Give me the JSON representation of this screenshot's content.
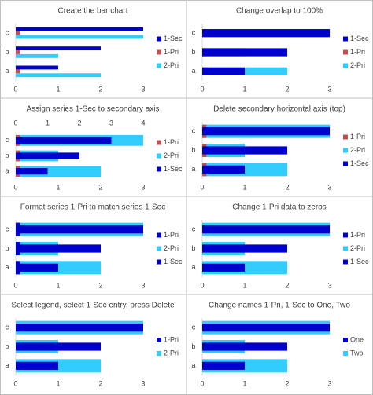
{
  "chart_data": [
    {
      "type": "bar",
      "title": "Create the bar chart",
      "overlap": 0,
      "categories": [
        "a",
        "b",
        "c"
      ],
      "series": [
        {
          "name": "1-Sec",
          "color": "#0000CC",
          "values": [
            1,
            2,
            3
          ]
        },
        {
          "name": "1-Pri",
          "color": "#C0504D",
          "values": [
            0.1,
            0.1,
            0.1
          ]
        },
        {
          "name": "2-Pri",
          "color": "#33CCFF",
          "values": [
            2,
            1,
            3
          ]
        }
      ],
      "xlim": [
        0,
        3
      ],
      "xticks": [
        0,
        1,
        2,
        3
      ]
    },
    {
      "type": "bar",
      "title": "Change overlap to 100%",
      "overlap": 100,
      "categories": [
        "a",
        "b",
        "c"
      ],
      "series": [
        {
          "name": "1-Sec",
          "color": "#0000CC",
          "values": [
            1,
            2,
            3
          ]
        },
        {
          "name": "1-Pri",
          "color": "#C0504D",
          "values": [
            0.1,
            0.1,
            0.1
          ]
        },
        {
          "name": "2-Pri",
          "color": "#33CCFF",
          "values": [
            2,
            1,
            3
          ]
        }
      ],
      "xlim": [
        0,
        3
      ],
      "xticks": [
        0,
        1,
        2,
        3
      ]
    },
    {
      "type": "bar",
      "title": "Assign series 1-Sec to secondary axis",
      "overlap": 100,
      "categories": [
        "a",
        "b",
        "c"
      ],
      "series": [
        {
          "name": "1-Pri",
          "color": "#C0504D",
          "values": [
            0.1,
            0.1,
            0.1
          ]
        },
        {
          "name": "2-Pri",
          "color": "#33CCFF",
          "values": [
            2,
            1,
            3
          ]
        },
        {
          "name": "1-Sec",
          "color": "#0000CC",
          "values": [
            1,
            2,
            3
          ],
          "axis": "x2"
        }
      ],
      "xlim": [
        0,
        3
      ],
      "xticks": [
        0,
        1,
        2,
        3
      ],
      "x2lim": [
        0,
        4
      ],
      "x2ticks": [
        0,
        1,
        2,
        3,
        4
      ]
    },
    {
      "type": "bar",
      "title": "Delete secondary horizontal axis (top)",
      "overlap": 100,
      "categories": [
        "a",
        "b",
        "c"
      ],
      "series": [
        {
          "name": "1-Pri",
          "color": "#C0504D",
          "values": [
            0.1,
            0.1,
            0.1
          ]
        },
        {
          "name": "2-Pri",
          "color": "#33CCFF",
          "values": [
            2,
            1,
            3
          ]
        },
        {
          "name": "1-Sec",
          "color": "#0000CC",
          "values": [
            1,
            2,
            3
          ],
          "axis": "secondary"
        }
      ],
      "xlim": [
        0,
        3
      ],
      "xticks": [
        0,
        1,
        2,
        3
      ]
    },
    {
      "type": "bar",
      "title": "Format series 1-Pri to match series 1-Sec",
      "overlap": 100,
      "categories": [
        "a",
        "b",
        "c"
      ],
      "series": [
        {
          "name": "1-Pri",
          "color": "#0000CC",
          "values": [
            0.1,
            0.1,
            0.1
          ]
        },
        {
          "name": "2-Pri",
          "color": "#33CCFF",
          "values": [
            2,
            1,
            3
          ]
        },
        {
          "name": "1-Sec",
          "color": "#0000CC",
          "values": [
            1,
            2,
            3
          ],
          "axis": "secondary"
        }
      ],
      "xlim": [
        0,
        3
      ],
      "xticks": [
        0,
        1,
        2,
        3
      ]
    },
    {
      "type": "bar",
      "title": "Change 1-Pri data to zeros",
      "overlap": 100,
      "categories": [
        "a",
        "b",
        "c"
      ],
      "series": [
        {
          "name": "1-Pri",
          "color": "#0000CC",
          "values": [
            0,
            0,
            0
          ]
        },
        {
          "name": "2-Pri",
          "color": "#33CCFF",
          "values": [
            2,
            1,
            3
          ]
        },
        {
          "name": "1-Sec",
          "color": "#0000CC",
          "values": [
            1,
            2,
            3
          ],
          "axis": "secondary"
        }
      ],
      "xlim": [
        0,
        3
      ],
      "xticks": [
        0,
        1,
        2,
        3
      ]
    },
    {
      "type": "bar",
      "title": "Select legend, select 1-Sec entry, press Delete",
      "overlap": 100,
      "categories": [
        "a",
        "b",
        "c"
      ],
      "series": [
        {
          "name": "1-Pri",
          "color": "#0000CC",
          "values": [
            0,
            0,
            0
          ]
        },
        {
          "name": "2-Pri",
          "color": "#33CCFF",
          "values": [
            2,
            1,
            3
          ]
        },
        {
          "color": "#0000CC",
          "values": [
            1,
            2,
            3
          ],
          "axis": "secondary"
        }
      ],
      "xlim": [
        0,
        3
      ],
      "xticks": [
        0,
        1,
        2,
        3
      ]
    },
    {
      "type": "bar",
      "title": "Change names 1-Pri, 1-Sec to One, Two",
      "overlap": 100,
      "categories": [
        "a",
        "b",
        "c"
      ],
      "series": [
        {
          "name": "One",
          "color": "#0000CC",
          "values": [
            0,
            0,
            0
          ]
        },
        {
          "name": "Two",
          "color": "#33CCFF",
          "values": [
            2,
            1,
            3
          ]
        },
        {
          "color": "#0000CC",
          "values": [
            1,
            2,
            3
          ],
          "axis": "secondary"
        }
      ],
      "xlim": [
        0,
        3
      ],
      "xticks": [
        0,
        1,
        2,
        3
      ]
    }
  ]
}
